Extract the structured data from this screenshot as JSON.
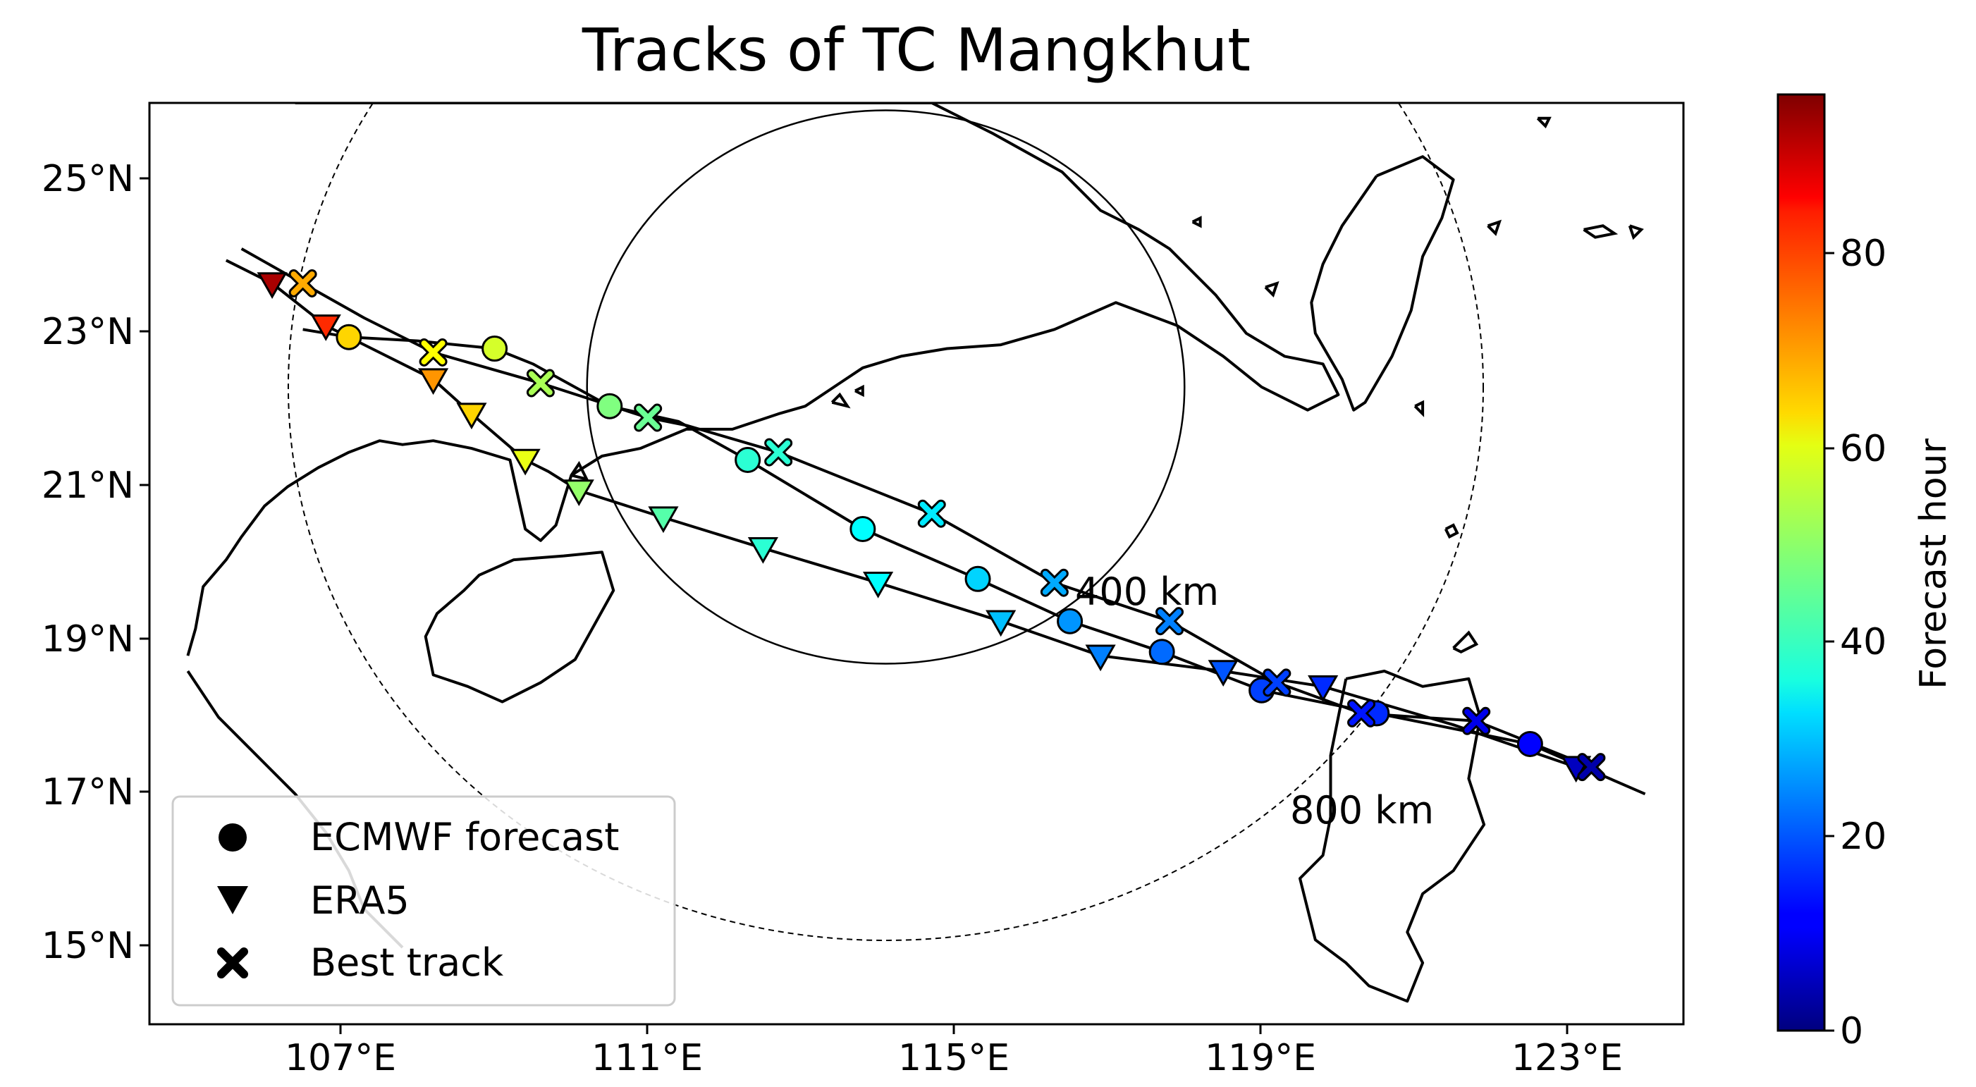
{
  "title": "Tracks of TC Mangkhut",
  "x_ticks": [
    "107°E",
    "111°E",
    "115°E",
    "119°E",
    "123°E"
  ],
  "y_ticks": [
    "25°N",
    "23°N",
    "21°N",
    "19°N",
    "17°N",
    "15°N"
  ],
  "ring_labels": {
    "inner": "400 km",
    "outer": "800 km"
  },
  "colorbar": {
    "label": "Forecast hour",
    "ticks": [
      "80",
      "60",
      "40",
      "20",
      "0"
    ],
    "colormap": "jet"
  },
  "legend": [
    {
      "label": "ECMWF forecast",
      "marker": "circle"
    },
    {
      "label": "ERA5",
      "marker": "triangle-down"
    },
    {
      "label": "Best track",
      "marker": "x"
    }
  ],
  "chart_data": {
    "type": "scatter",
    "title": "Tracks of TC Mangkhut",
    "xlim": [
      105,
      125
    ],
    "ylim": [
      14,
      26
    ],
    "x_unit": "°E",
    "y_unit": "°N",
    "center": [
      114.6,
      22.3
    ],
    "ring_radii_km": [
      400,
      800
    ],
    "color_scale": {
      "label": "Forecast hour",
      "range": [
        0,
        96
      ],
      "colormap": "jet"
    },
    "series": [
      {
        "name": "ECMWF forecast",
        "marker": "circle",
        "points": [
          {
            "lon": 123.0,
            "lat": 17.65,
            "h": 12
          },
          {
            "lon": 121.0,
            "lat": 18.05,
            "h": 16
          },
          {
            "lon": 119.5,
            "lat": 18.35,
            "h": 18
          },
          {
            "lon": 118.2,
            "lat": 18.85,
            "h": 22
          },
          {
            "lon": 117.0,
            "lat": 19.25,
            "h": 26
          },
          {
            "lon": 115.8,
            "lat": 19.8,
            "h": 32
          },
          {
            "lon": 114.3,
            "lat": 20.45,
            "h": 36
          },
          {
            "lon": 112.8,
            "lat": 21.35,
            "h": 40
          },
          {
            "lon": 111.0,
            "lat": 22.05,
            "h": 48
          },
          {
            "lon": 109.5,
            "lat": 22.8,
            "h": 56
          },
          {
            "lon": 107.6,
            "lat": 22.95,
            "h": 64
          }
        ]
      },
      {
        "name": "ERA5",
        "marker": "triangle-down",
        "points": [
          {
            "lon": 123.6,
            "lat": 17.35,
            "h": 6
          },
          {
            "lon": 120.3,
            "lat": 18.4,
            "h": 16
          },
          {
            "lon": 119.0,
            "lat": 18.6,
            "h": 20
          },
          {
            "lon": 117.4,
            "lat": 18.8,
            "h": 24
          },
          {
            "lon": 116.1,
            "lat": 19.25,
            "h": 30
          },
          {
            "lon": 114.5,
            "lat": 19.75,
            "h": 36
          },
          {
            "lon": 113.0,
            "lat": 20.2,
            "h": 40
          },
          {
            "lon": 111.7,
            "lat": 20.6,
            "h": 44
          },
          {
            "lon": 110.6,
            "lat": 20.95,
            "h": 50
          },
          {
            "lon": 109.9,
            "lat": 21.35,
            "h": 58
          },
          {
            "lon": 109.2,
            "lat": 21.95,
            "h": 64
          },
          {
            "lon": 108.7,
            "lat": 22.4,
            "h": 70
          },
          {
            "lon": 107.3,
            "lat": 23.1,
            "h": 80
          },
          {
            "lon": 106.6,
            "lat": 23.65,
            "h": 92
          }
        ]
      },
      {
        "name": "Best track",
        "marker": "x",
        "points": [
          {
            "lon": 123.8,
            "lat": 17.35,
            "h": 4
          },
          {
            "lon": 122.3,
            "lat": 17.95,
            "h": 10
          },
          {
            "lon": 120.8,
            "lat": 18.05,
            "h": 14
          },
          {
            "lon": 119.7,
            "lat": 18.45,
            "h": 18
          },
          {
            "lon": 118.3,
            "lat": 19.25,
            "h": 24
          },
          {
            "lon": 116.8,
            "lat": 19.75,
            "h": 28
          },
          {
            "lon": 115.2,
            "lat": 20.65,
            "h": 34
          },
          {
            "lon": 113.2,
            "lat": 21.45,
            "h": 40
          },
          {
            "lon": 111.5,
            "lat": 21.9,
            "h": 46
          },
          {
            "lon": 110.1,
            "lat": 22.35,
            "h": 52
          },
          {
            "lon": 108.7,
            "lat": 22.75,
            "h": 60
          },
          {
            "lon": 107.0,
            "lat": 23.65,
            "h": 68
          }
        ]
      }
    ],
    "track_lines": [
      {
        "name": "ECMWF forecast",
        "points": [
          [
            124.5,
            17.0
          ],
          [
            123.0,
            17.65
          ],
          [
            121.0,
            18.05
          ],
          [
            119.5,
            18.35
          ],
          [
            118.2,
            18.85
          ],
          [
            117.0,
            19.25
          ],
          [
            115.8,
            19.8
          ],
          [
            114.3,
            20.45
          ],
          [
            112.8,
            21.35
          ],
          [
            111.9,
            21.85
          ],
          [
            111.0,
            22.05
          ],
          [
            110.0,
            22.6
          ],
          [
            109.5,
            22.8
          ],
          [
            108.5,
            22.9
          ],
          [
            107.6,
            22.95
          ],
          [
            107.0,
            23.05
          ]
        ]
      },
      {
        "name": "ERA5",
        "points": [
          [
            123.6,
            17.35
          ],
          [
            122.0,
            17.9
          ],
          [
            120.3,
            18.4
          ],
          [
            119.0,
            18.6
          ],
          [
            117.4,
            18.8
          ],
          [
            116.1,
            19.25
          ],
          [
            114.5,
            19.75
          ],
          [
            113.0,
            20.2
          ],
          [
            111.7,
            20.6
          ],
          [
            110.6,
            20.95
          ],
          [
            110.2,
            21.2
          ],
          [
            109.9,
            21.35
          ],
          [
            109.2,
            21.95
          ],
          [
            108.7,
            22.4
          ],
          [
            107.3,
            23.1
          ],
          [
            106.6,
            23.65
          ],
          [
            106.0,
            23.95
          ]
        ]
      },
      {
        "name": "Best track",
        "points": [
          [
            123.8,
            17.35
          ],
          [
            122.3,
            17.95
          ],
          [
            120.8,
            18.05
          ],
          [
            119.7,
            18.45
          ],
          [
            118.3,
            19.25
          ],
          [
            116.8,
            19.75
          ],
          [
            115.2,
            20.65
          ],
          [
            113.2,
            21.45
          ],
          [
            112.0,
            21.8
          ],
          [
            111.5,
            21.9
          ],
          [
            110.1,
            22.35
          ],
          [
            108.7,
            22.75
          ],
          [
            107.8,
            23.2
          ],
          [
            107.0,
            23.65
          ],
          [
            106.2,
            24.1
          ]
        ]
      }
    ]
  },
  "coastlines": {
    "china_south": [
      [
        106.9,
        26.0
      ],
      [
        108.0,
        26.0
      ],
      [
        115.2,
        26.0
      ],
      [
        116.0,
        25.6
      ],
      [
        116.9,
        25.1
      ],
      [
        117.4,
        24.6
      ],
      [
        117.9,
        24.35
      ],
      [
        118.3,
        24.1
      ],
      [
        118.9,
        23.5
      ],
      [
        119.3,
        23.0
      ],
      [
        119.8,
        22.7
      ],
      [
        120.3,
        22.6
      ],
      [
        120.5,
        22.2
      ],
      [
        120.1,
        22.0
      ],
      [
        119.5,
        22.3
      ],
      [
        119.0,
        22.7
      ],
      [
        118.4,
        23.1
      ],
      [
        117.6,
        23.4
      ],
      [
        116.8,
        23.05
      ],
      [
        116.1,
        22.85
      ],
      [
        115.4,
        22.8
      ],
      [
        114.8,
        22.7
      ],
      [
        114.3,
        22.55
      ],
      [
        114.0,
        22.35
      ],
      [
        113.7,
        22.15
      ],
      [
        113.55,
        22.05
      ],
      [
        113.2,
        21.95
      ],
      [
        112.6,
        21.75
      ],
      [
        112.0,
        21.75
      ],
      [
        111.4,
        21.5
      ],
      [
        110.9,
        21.4
      ],
      [
        110.5,
        21.15
      ],
      [
        110.3,
        20.5
      ],
      [
        110.1,
        20.3
      ],
      [
        109.9,
        20.45
      ],
      [
        109.8,
        20.9
      ],
      [
        109.7,
        21.35
      ],
      [
        109.2,
        21.5
      ],
      [
        108.7,
        21.6
      ],
      [
        108.3,
        21.55
      ],
      [
        108.0,
        21.6
      ],
      [
        107.6,
        21.45
      ],
      [
        107.2,
        21.25
      ],
      [
        106.8,
        21.0
      ],
      [
        106.5,
        20.75
      ],
      [
        106.2,
        20.35
      ],
      [
        106.0,
        20.05
      ],
      [
        105.7,
        19.7
      ],
      [
        105.6,
        19.15
      ],
      [
        105.5,
        18.8
      ]
    ],
    "hainan": [
      [
        110.4,
        20.1
      ],
      [
        110.9,
        20.15
      ],
      [
        111.05,
        19.65
      ],
      [
        110.8,
        19.2
      ],
      [
        110.55,
        18.75
      ],
      [
        110.1,
        18.45
      ],
      [
        109.6,
        18.2
      ],
      [
        109.15,
        18.4
      ],
      [
        108.7,
        18.55
      ],
      [
        108.6,
        19.05
      ],
      [
        108.75,
        19.35
      ],
      [
        109.1,
        19.65
      ],
      [
        109.3,
        19.85
      ],
      [
        109.75,
        20.05
      ],
      [
        110.4,
        20.1
      ]
    ],
    "taiwan": [
      [
        121.0,
        25.05
      ],
      [
        121.6,
        25.3
      ],
      [
        122.0,
        25.0
      ],
      [
        121.85,
        24.5
      ],
      [
        121.6,
        24.0
      ],
      [
        121.45,
        23.3
      ],
      [
        121.2,
        22.7
      ],
      [
        120.85,
        22.1
      ],
      [
        120.7,
        22.0
      ],
      [
        120.55,
        22.4
      ],
      [
        120.2,
        23.0
      ],
      [
        120.15,
        23.4
      ],
      [
        120.3,
        23.9
      ],
      [
        120.55,
        24.4
      ],
      [
        121.0,
        25.05
      ]
    ],
    "luzon": [
      [
        120.6,
        18.5
      ],
      [
        121.1,
        18.6
      ],
      [
        121.6,
        18.4
      ],
      [
        122.2,
        18.5
      ],
      [
        122.35,
        18.0
      ],
      [
        122.2,
        17.2
      ],
      [
        122.4,
        16.6
      ],
      [
        122.0,
        16.0
      ],
      [
        121.6,
        15.7
      ],
      [
        121.4,
        15.2
      ],
      [
        121.6,
        14.8
      ],
      [
        121.4,
        14.3
      ],
      [
        120.9,
        14.5
      ],
      [
        120.6,
        14.8
      ],
      [
        120.2,
        15.1
      ],
      [
        120.0,
        15.9
      ],
      [
        120.3,
        16.2
      ],
      [
        120.4,
        16.7
      ],
      [
        120.4,
        17.5
      ],
      [
        120.5,
        18.0
      ],
      [
        120.6,
        18.5
      ]
    ],
    "vietnam_coast": [
      [
        105.5,
        18.6
      ],
      [
        105.9,
        18.0
      ],
      [
        106.4,
        17.5
      ],
      [
        106.9,
        17.0
      ],
      [
        107.3,
        16.5
      ],
      [
        107.6,
        16.0
      ],
      [
        107.8,
        15.5
      ],
      [
        108.3,
        15.0
      ]
    ],
    "islands": [
      [
        [
          122.0,
          18.9
        ],
        [
          122.2,
          19.1
        ],
        [
          122.3,
          18.95
        ],
        [
          122.1,
          18.85
        ],
        [
          122.0,
          18.9
        ]
      ],
      [
        [
          121.9,
          20.45
        ],
        [
          122.0,
          20.5
        ],
        [
          122.05,
          20.4
        ],
        [
          121.95,
          20.35
        ],
        [
          121.9,
          20.45
        ]
      ],
      [
        [
          121.5,
          22.05
        ],
        [
          121.6,
          22.1
        ],
        [
          121.6,
          21.95
        ],
        [
          121.5,
          22.05
        ]
      ],
      [
        [
          119.55,
          23.6
        ],
        [
          119.7,
          23.65
        ],
        [
          119.65,
          23.5
        ],
        [
          119.55,
          23.6
        ]
      ],
      [
        [
          122.45,
          24.4
        ],
        [
          122.6,
          24.45
        ],
        [
          122.55,
          24.3
        ],
        [
          122.45,
          24.4
        ]
      ],
      [
        [
          123.7,
          24.35
        ],
        [
          123.95,
          24.4
        ],
        [
          124.1,
          24.3
        ],
        [
          123.85,
          24.25
        ],
        [
          123.7,
          24.35
        ]
      ],
      [
        [
          124.3,
          24.4
        ],
        [
          124.45,
          24.35
        ],
        [
          124.35,
          24.25
        ],
        [
          124.3,
          24.4
        ]
      ],
      [
        [
          123.1,
          25.8
        ],
        [
          123.25,
          25.8
        ],
        [
          123.2,
          25.7
        ],
        [
          123.1,
          25.8
        ]
      ],
      [
        [
          110.5,
          21.15
        ],
        [
          110.6,
          21.3
        ],
        [
          110.7,
          21.1
        ],
        [
          110.5,
          21.15
        ]
      ],
      [
        [
          113.9,
          22.1
        ],
        [
          114.0,
          22.2
        ],
        [
          114.1,
          22.05
        ],
        [
          113.9,
          22.1
        ]
      ],
      [
        [
          114.2,
          22.25
        ],
        [
          114.3,
          22.3
        ],
        [
          114.3,
          22.2
        ],
        [
          114.2,
          22.25
        ]
      ],
      [
        [
          118.6,
          24.45
        ],
        [
          118.7,
          24.5
        ],
        [
          118.7,
          24.4
        ],
        [
          118.6,
          24.45
        ]
      ]
    ]
  }
}
